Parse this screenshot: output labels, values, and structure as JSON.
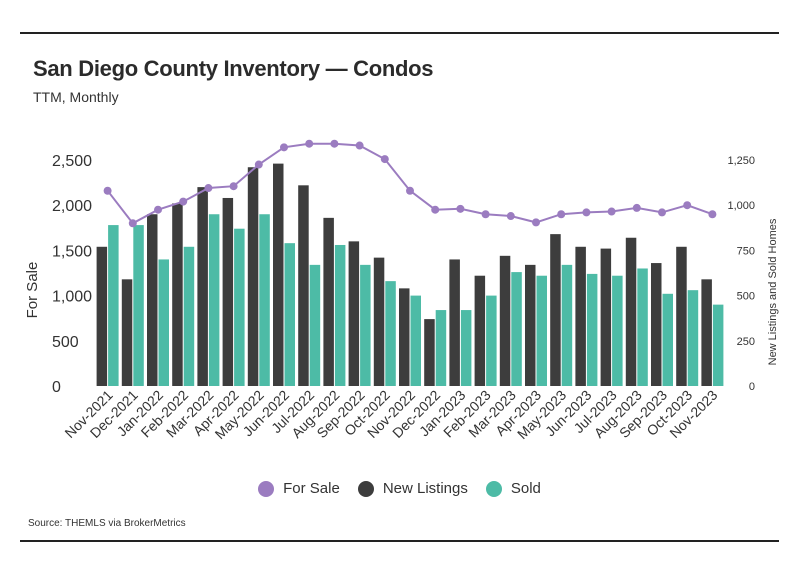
{
  "title": "San Diego County Inventory — Condos",
  "subtitle": "TTM, Monthly",
  "source": "Source:  THEMLS via BrokerMetrics",
  "colors": {
    "for_sale": "#9b7cc0",
    "new_listings": "#3d3d3d",
    "sold": "#4dbba6"
  },
  "legend": [
    {
      "label": "For Sale",
      "color_key": "for_sale"
    },
    {
      "label": "New Listings",
      "color_key": "new_listings"
    },
    {
      "label": "Sold",
      "color_key": "sold"
    }
  ],
  "chart_data": {
    "type": "bar",
    "title": "San Diego County Inventory — Condos",
    "subtitle": "TTM, Monthly",
    "categories": [
      "Nov-2021",
      "Dec-2021",
      "Jan-2022",
      "Feb-2022",
      "Mar-2022",
      "Apr-2022",
      "May-2022",
      "Jun-2022",
      "Jul-2022",
      "Aug-2022",
      "Sep-2022",
      "Oct-2022",
      "Nov-2022",
      "Dec-2022",
      "Jan-2023",
      "Feb-2023",
      "Mar-2023",
      "Apr-2023",
      "May-2023",
      "Jun-2023",
      "Jul-2023",
      "Aug-2023",
      "Sep-2023",
      "Oct-2023",
      "Nov-2023"
    ],
    "ylabel_left": "For Sale",
    "ylabel_right": "New Listings and Sold Homes",
    "ylim_left": [
      0,
      2500
    ],
    "ylim_right": [
      0,
      1250
    ],
    "yticks_left": [
      "2,500",
      "2,000",
      "1,500",
      "1,000",
      "500",
      "0"
    ],
    "yticks_right": [
      "1,250",
      "1,000",
      "750",
      "500",
      "250",
      "0"
    ],
    "legend_position": "bottom",
    "series": [
      {
        "name": "New Listings",
        "type": "bar",
        "axis": "right",
        "values": [
          770,
          590,
          950,
          1010,
          1100,
          1040,
          1210,
          1230,
          1110,
          930,
          800,
          710,
          540,
          370,
          700,
          610,
          720,
          670,
          840,
          770,
          760,
          820,
          680,
          770,
          590
        ]
      },
      {
        "name": "Sold",
        "type": "bar",
        "axis": "right",
        "values": [
          890,
          890,
          700,
          770,
          950,
          870,
          950,
          790,
          670,
          780,
          670,
          580,
          500,
          420,
          420,
          500,
          630,
          610,
          670,
          620,
          610,
          650,
          510,
          530,
          450
        ]
      },
      {
        "name": "For Sale",
        "type": "line",
        "axis": "left",
        "values": [
          2160,
          1800,
          1950,
          2040,
          2190,
          2210,
          2450,
          2640,
          2680,
          2680,
          2660,
          2510,
          2160,
          1950,
          1960,
          1900,
          1880,
          1810,
          1900,
          1920,
          1930,
          1970,
          1920,
          2000,
          1900
        ]
      }
    ]
  }
}
